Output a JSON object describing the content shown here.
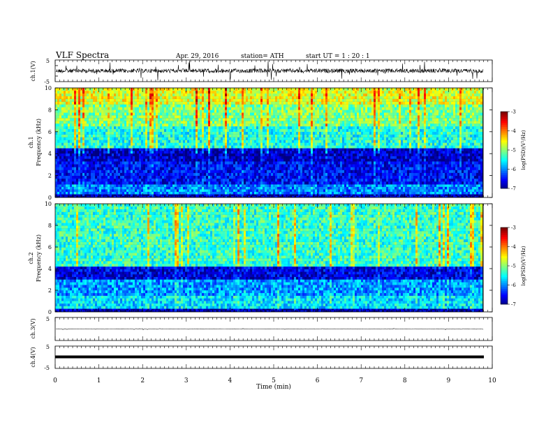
{
  "header": {
    "title": "VLF Spectra",
    "date": "Apr. 29, 2016",
    "station": "station= ATH",
    "start": "start  UT =   1  : 20 : 1"
  },
  "chart_data": [
    {
      "type": "line",
      "id": "ch1_waveform",
      "ylabel": "ch.1(V)",
      "yticks": [
        "5",
        "-5"
      ],
      "ylim": [
        -5,
        5
      ],
      "x_range": [
        0,
        9.8
      ],
      "color": "#000000"
    },
    {
      "type": "heatmap",
      "id": "ch1_spectrogram",
      "ylabel_lines": [
        "ch.1",
        "Frequency  (kHz)"
      ],
      "yticks": [
        "0",
        "2",
        "4",
        "6",
        "8",
        "10"
      ],
      "ylim": [
        0,
        10
      ],
      "x_range": [
        0,
        9.8
      ],
      "bands_khz": [
        {
          "from": 0.0,
          "to": 0.3,
          "level": -6.8
        },
        {
          "from": 0.3,
          "to": 1.2,
          "level": -6.0
        },
        {
          "from": 1.2,
          "to": 3.3,
          "level": -6.5
        },
        {
          "from": 3.3,
          "to": 4.5,
          "level": -6.7
        },
        {
          "from": 4.5,
          "to": 6.5,
          "level": -5.4
        },
        {
          "from": 6.5,
          "to": 8.5,
          "level": -5.0
        },
        {
          "from": 8.5,
          "to": 10.0,
          "level": -4.6
        }
      ],
      "colorbar": {
        "label": "log(PSD)(V²/Hz)",
        "ticks": [
          "-3",
          "-4",
          "-5",
          "-6",
          "-7"
        ],
        "range": [
          -7,
          -3
        ]
      }
    },
    {
      "type": "heatmap",
      "id": "ch2_spectrogram",
      "ylabel_lines": [
        "ch.2",
        "Frequency  (kHz)"
      ],
      "yticks": [
        "0",
        "2",
        "4",
        "6",
        "8",
        "10"
      ],
      "ylim": [
        0,
        10
      ],
      "x_range": [
        0,
        9.8
      ],
      "bands_khz": [
        {
          "from": 0.0,
          "to": 0.3,
          "level": -6.8
        },
        {
          "from": 0.3,
          "to": 1.5,
          "level": -5.6
        },
        {
          "from": 1.5,
          "to": 3.0,
          "level": -5.9
        },
        {
          "from": 3.0,
          "to": 4.2,
          "level": -6.6
        },
        {
          "from": 4.2,
          "to": 10.0,
          "level": -5.3
        }
      ],
      "colorbar": {
        "label": "log(PSD)(V²/Hz)",
        "ticks": [
          "-3",
          "-4",
          "-5",
          "-6",
          "-7"
        ],
        "range": [
          -7,
          -3
        ]
      }
    },
    {
      "type": "line",
      "id": "ch3_waveform",
      "ylabel": "ch.3(V)",
      "yticks": [
        "5"
      ],
      "ylim": [
        -5,
        5
      ],
      "x_range": [
        0,
        9.8
      ],
      "level": 0
    },
    {
      "type": "line",
      "id": "ch4_waveform",
      "ylabel": "ch.4(V)",
      "yticks": [
        "5",
        "-5"
      ],
      "ylim": [
        -5,
        5
      ],
      "x_range": [
        0,
        9.8
      ],
      "level": 0
    }
  ],
  "xaxis": {
    "label": "Time  (min)",
    "ticks": [
      "0",
      "1",
      "2",
      "3",
      "4",
      "5",
      "6",
      "7",
      "8",
      "9",
      "10"
    ],
    "range": [
      0,
      10
    ]
  }
}
